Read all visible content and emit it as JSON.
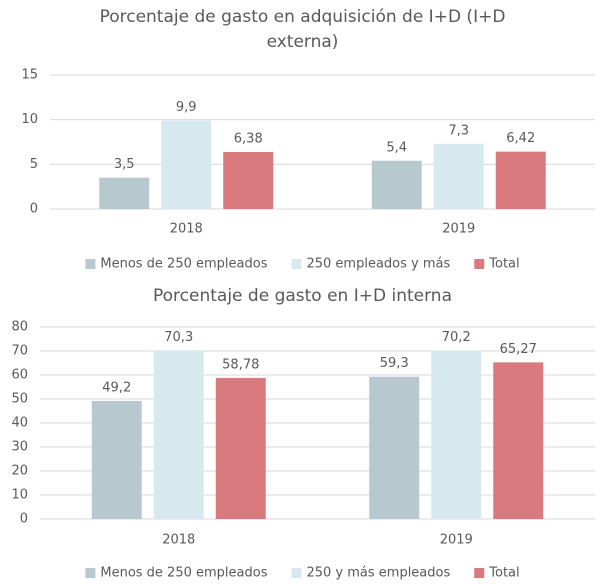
{
  "chart_data": [
    {
      "type": "bar",
      "title": "Porcentaje de gasto en adquisición de I+D (I+D externa)",
      "categories": [
        "2018",
        "2019"
      ],
      "series": [
        {
          "name": "Menos de 250 empleados",
          "color": "#b8c8cf",
          "values": [
            3.5,
            5.4
          ],
          "value_labels": [
            "3,5",
            "5,4"
          ]
        },
        {
          "name": "250 empleados y más",
          "color": "#d8e8ef",
          "values": [
            9.9,
            7.3
          ],
          "value_labels": [
            "9,9",
            "7,3"
          ]
        },
        {
          "name": "Total",
          "color": "#d97a7e",
          "values": [
            6.38,
            6.42
          ],
          "value_labels": [
            "6,38",
            "6,42"
          ]
        }
      ],
      "ylim": [
        0,
        15
      ],
      "yticks": [
        0,
        5,
        10,
        15
      ],
      "grid": true,
      "legend": "bottom"
    },
    {
      "type": "bar",
      "title": "Porcentaje de gasto en I+D interna",
      "categories": [
        "2018",
        "2019"
      ],
      "series": [
        {
          "name": "Menos de 250 empleados",
          "color": "#b8c8cf",
          "values": [
            49.2,
            59.3
          ],
          "value_labels": [
            "49,2",
            "59,3"
          ]
        },
        {
          "name": "250 y más empleados",
          "color": "#d8e8ef",
          "values": [
            70.3,
            70.2
          ],
          "value_labels": [
            "70,3",
            "70,2"
          ]
        },
        {
          "name": "Total",
          "color": "#d97a7e",
          "values": [
            58.78,
            65.27
          ],
          "value_labels": [
            "58,78",
            "65,27"
          ]
        }
      ],
      "ylim": [
        0,
        80
      ],
      "yticks": [
        0,
        10,
        20,
        30,
        40,
        50,
        60,
        70,
        80
      ],
      "grid": true,
      "legend": "bottom"
    }
  ]
}
